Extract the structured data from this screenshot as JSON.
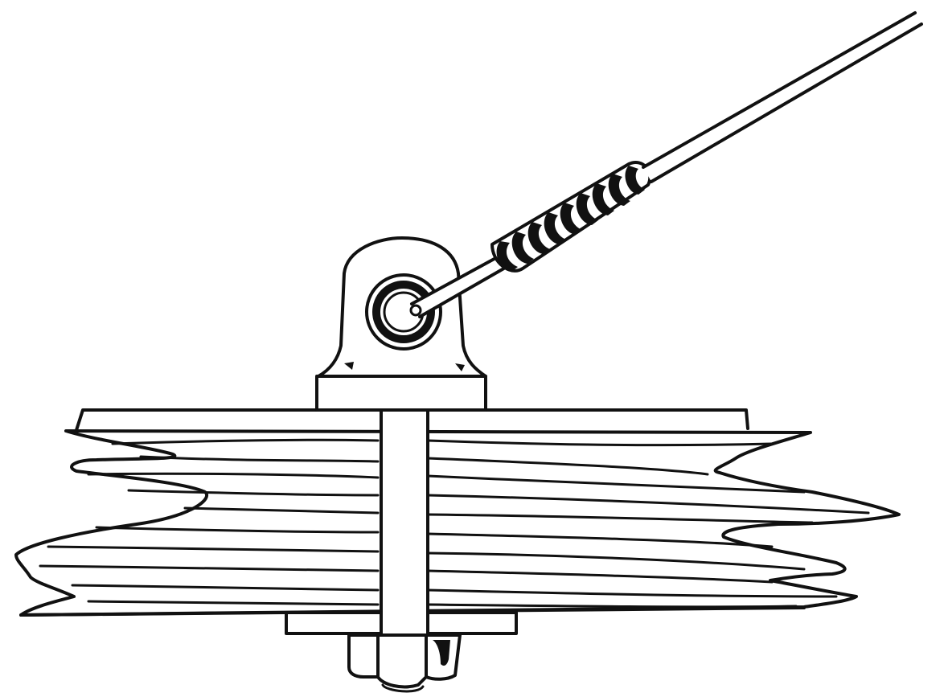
{
  "figure": {
    "ink_color": "#111111",
    "paper_color": "#ffffff",
    "labels": []
  }
}
